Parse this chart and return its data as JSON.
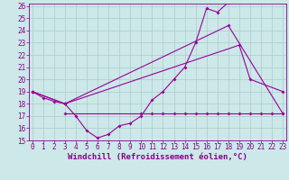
{
  "background_color": "#cce8e8",
  "line_color": "#990099",
  "grid_color": "#aacccc",
  "line1_x": [
    0,
    1,
    2,
    3,
    4,
    5,
    6,
    7,
    8,
    9,
    10,
    11,
    12,
    13,
    14,
    15,
    16,
    17,
    18
  ],
  "line1_y": [
    19.0,
    18.5,
    18.2,
    18.0,
    17.0,
    15.8,
    15.2,
    15.5,
    16.2,
    16.4,
    17.0,
    18.3,
    19.0,
    20.0,
    21.0,
    23.0,
    25.8,
    25.5,
    26.3
  ],
  "line2_x": [
    0,
    3,
    18,
    23
  ],
  "line2_y": [
    19.0,
    18.0,
    24.4,
    17.2
  ],
  "line3_x": [
    0,
    3,
    19,
    20,
    23
  ],
  "line3_y": [
    19.0,
    18.0,
    22.8,
    20.0,
    19.0
  ],
  "line4_x": [
    3,
    10,
    11,
    12,
    13,
    14,
    15,
    16,
    17,
    18,
    19,
    20,
    21,
    22,
    23
  ],
  "line4_y": [
    17.2,
    17.2,
    17.2,
    17.2,
    17.2,
    17.2,
    17.2,
    17.2,
    17.2,
    17.2,
    17.2,
    17.2,
    17.2,
    17.2,
    17.2
  ],
  "ylim": [
    15,
    26
  ],
  "xlim": [
    -0.3,
    23.3
  ],
  "yticks": [
    15,
    16,
    17,
    18,
    19,
    20,
    21,
    22,
    23,
    24,
    25,
    26
  ],
  "xticks": [
    0,
    1,
    2,
    3,
    4,
    5,
    6,
    7,
    8,
    9,
    10,
    11,
    12,
    13,
    14,
    15,
    16,
    17,
    18,
    19,
    20,
    21,
    22,
    23
  ],
  "font_color": "#880088",
  "tick_fontsize": 5.5,
  "xlabel": "Windchill (Refroidissement éolien,°C)",
  "xlabel_fontsize": 6.5,
  "marker_size": 2.0,
  "linewidth": 0.8
}
